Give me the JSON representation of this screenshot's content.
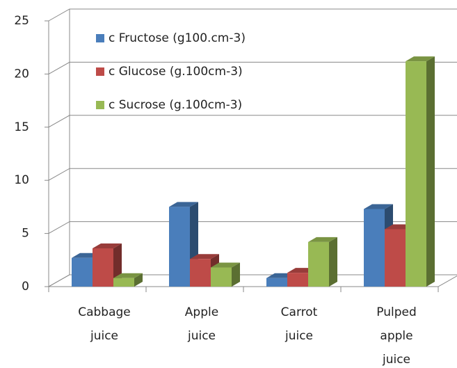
{
  "chart_data": {
    "type": "bar3d",
    "categories": [
      "Cabbage juice",
      "Apple juice",
      "Carrot juice",
      "Pulped apple juice"
    ],
    "series": [
      {
        "name": "c Fructose (g100.cm-3)",
        "color": "#4a7ebb",
        "values": [
          2.7,
          7.5,
          0.8,
          7.3
        ]
      },
      {
        "name": "c Glucose (g.100cm-3)",
        "color": "#be4b48",
        "values": [
          3.6,
          2.6,
          1.3,
          5.4
        ]
      },
      {
        "name": "c Sucrose (g.100cm-3)",
        "color": "#98b954",
        "values": [
          0.8,
          1.8,
          4.2,
          21.2
        ]
      }
    ],
    "ylim": [
      0,
      25
    ],
    "yticks": [
      0,
      5,
      10,
      15,
      20,
      25
    ],
    "grid": true,
    "legend": "top-left"
  }
}
